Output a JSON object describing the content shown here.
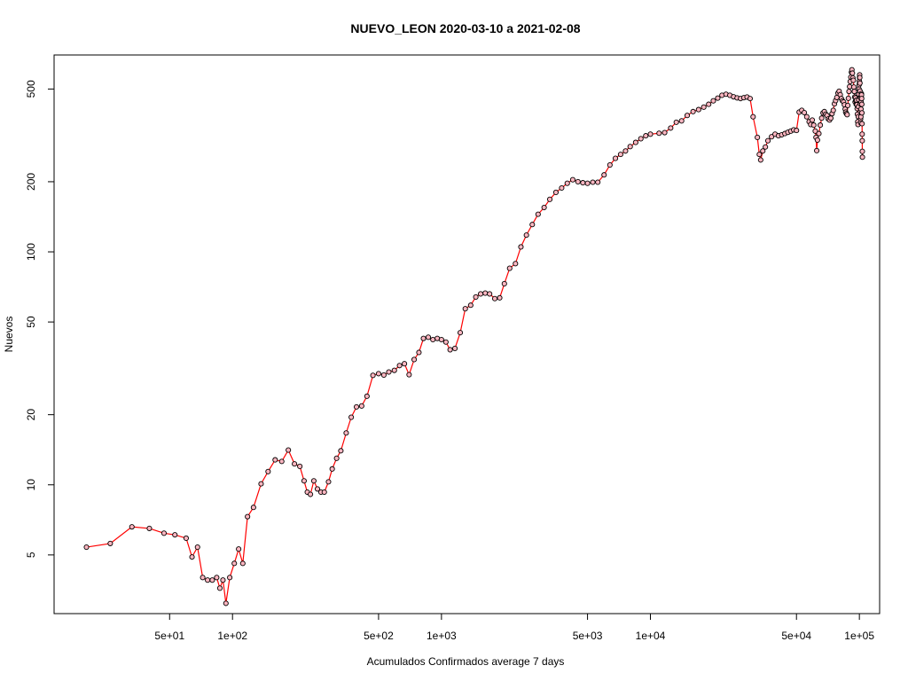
{
  "chart_data": {
    "type": "line",
    "title": "NUEVO_LEON 2020-03-10 a 2021-02-08",
    "xlabel": "Acumulados Confirmados average  7  days",
    "ylabel": "Nuevos",
    "x_scale": "log",
    "y_scale": "log",
    "xlim": [
      14,
      125000
    ],
    "ylim": [
      2.8,
      700
    ],
    "x_ticks": [
      {
        "value": 50,
        "label": "5e+01"
      },
      {
        "value": 100,
        "label": "1e+02"
      },
      {
        "value": 500,
        "label": "5e+02"
      },
      {
        "value": 1000,
        "label": "1e+03"
      },
      {
        "value": 5000,
        "label": "5e+03"
      },
      {
        "value": 10000,
        "label": "1e+04"
      },
      {
        "value": 50000,
        "label": "5e+04"
      },
      {
        "value": 100000,
        "label": "1e+05"
      }
    ],
    "y_ticks": [
      {
        "value": 5,
        "label": "5"
      },
      {
        "value": 10,
        "label": "10"
      },
      {
        "value": 20,
        "label": "20"
      },
      {
        "value": 50,
        "label": "50"
      },
      {
        "value": 100,
        "label": "100"
      },
      {
        "value": 200,
        "label": "200"
      },
      {
        "value": 500,
        "label": "500"
      }
    ],
    "grid": false,
    "legend": "none",
    "colors": {
      "line": "#ff0000",
      "marker_fill": "#ffb6c1",
      "marker_stroke": "#000000",
      "frame": "#000000"
    },
    "series": [
      {
        "points": [
          [
            20,
            5.4
          ],
          [
            26,
            5.6
          ],
          [
            33,
            6.6
          ],
          [
            40,
            6.5
          ],
          [
            47,
            6.2
          ],
          [
            53,
            6.1
          ],
          [
            60,
            5.9
          ],
          [
            64,
            4.9
          ],
          [
            68,
            5.4
          ],
          [
            72,
            4.0
          ],
          [
            76,
            3.9
          ],
          [
            80,
            3.9
          ],
          [
            84,
            4.0
          ],
          [
            87,
            3.6
          ],
          [
            90,
            3.9
          ],
          [
            93,
            3.1
          ],
          [
            97,
            4.0
          ],
          [
            102,
            4.6
          ],
          [
            107,
            5.3
          ],
          [
            112,
            4.6
          ],
          [
            118,
            7.3
          ],
          [
            126,
            8.0
          ],
          [
            137,
            10.1
          ],
          [
            148,
            11.4
          ],
          [
            160,
            12.8
          ],
          [
            172,
            12.6
          ],
          [
            185,
            14.1
          ],
          [
            198,
            12.3
          ],
          [
            210,
            12.0
          ],
          [
            220,
            10.4
          ],
          [
            228,
            9.3
          ],
          [
            236,
            9.1
          ],
          [
            245,
            10.4
          ],
          [
            255,
            9.6
          ],
          [
            265,
            9.3
          ],
          [
            275,
            9.3
          ],
          [
            288,
            10.3
          ],
          [
            300,
            11.7
          ],
          [
            315,
            13.0
          ],
          [
            330,
            14.0
          ],
          [
            350,
            16.7
          ],
          [
            370,
            19.5
          ],
          [
            392,
            21.6
          ],
          [
            415,
            21.8
          ],
          [
            440,
            24.0
          ],
          [
            470,
            29.5
          ],
          [
            500,
            30.0
          ],
          [
            530,
            29.6
          ],
          [
            560,
            30.5
          ],
          [
            595,
            31.0
          ],
          [
            630,
            32.5
          ],
          [
            665,
            33.1
          ],
          [
            700,
            29.7
          ],
          [
            740,
            34.5
          ],
          [
            780,
            37.0
          ],
          [
            820,
            42.5
          ],
          [
            865,
            43.0
          ],
          [
            910,
            42.0
          ],
          [
            955,
            42.5
          ],
          [
            1000,
            42.0
          ],
          [
            1050,
            41.0
          ],
          [
            1100,
            38.0
          ],
          [
            1160,
            38.5
          ],
          [
            1230,
            45.0
          ],
          [
            1300,
            57.0
          ],
          [
            1380,
            59.0
          ],
          [
            1460,
            64.0
          ],
          [
            1540,
            66.0
          ],
          [
            1620,
            66.5
          ],
          [
            1700,
            66.0
          ],
          [
            1800,
            63.0
          ],
          [
            1900,
            63.5
          ],
          [
            2000,
            73.0
          ],
          [
            2120,
            85.0
          ],
          [
            2260,
            89.0
          ],
          [
            2400,
            105
          ],
          [
            2550,
            118
          ],
          [
            2720,
            131
          ],
          [
            2900,
            145
          ],
          [
            3100,
            155
          ],
          [
            3300,
            168
          ],
          [
            3530,
            180
          ],
          [
            3760,
            188
          ],
          [
            4000,
            197
          ],
          [
            4250,
            204
          ],
          [
            4500,
            200
          ],
          [
            4750,
            198
          ],
          [
            5000,
            197
          ],
          [
            5300,
            199
          ],
          [
            5600,
            199
          ],
          [
            6000,
            214
          ],
          [
            6400,
            236
          ],
          [
            6800,
            252
          ],
          [
            7200,
            262
          ],
          [
            7600,
            271
          ],
          [
            8000,
            283
          ],
          [
            8500,
            295
          ],
          [
            9000,
            306
          ],
          [
            9500,
            315
          ],
          [
            10000,
            320
          ],
          [
            11000,
            323
          ],
          [
            11700,
            325
          ],
          [
            12500,
            340
          ],
          [
            13300,
            360
          ],
          [
            14100,
            365
          ],
          [
            15000,
            385
          ],
          [
            16000,
            400
          ],
          [
            17000,
            408
          ],
          [
            18000,
            418
          ],
          [
            19000,
            430
          ],
          [
            20000,
            445
          ],
          [
            21000,
            457
          ],
          [
            22000,
            470
          ],
          [
            23000,
            475
          ],
          [
            24000,
            470
          ],
          [
            25000,
            463
          ],
          [
            26000,
            458
          ],
          [
            27000,
            455
          ],
          [
            28000,
            459
          ],
          [
            29000,
            462
          ],
          [
            30000,
            455
          ],
          [
            31000,
            380
          ],
          [
            32500,
            310
          ],
          [
            33200,
            262
          ],
          [
            33700,
            248
          ],
          [
            34500,
            271
          ],
          [
            35500,
            282
          ],
          [
            36500,
            300
          ],
          [
            38000,
            312
          ],
          [
            39500,
            320
          ],
          [
            41000,
            315
          ],
          [
            42500,
            318
          ],
          [
            44000,
            322
          ],
          [
            45500,
            326
          ],
          [
            47000,
            330
          ],
          [
            48500,
            334
          ],
          [
            50000,
            332
          ],
          [
            51500,
            398
          ],
          [
            53000,
            405
          ],
          [
            54500,
            396
          ],
          [
            56000,
            380
          ],
          [
            57500,
            362
          ],
          [
            58500,
            352
          ],
          [
            59500,
            368
          ],
          [
            60500,
            350
          ],
          [
            61500,
            330
          ],
          [
            62000,
            310
          ],
          [
            62500,
            272
          ],
          [
            63000,
            302
          ],
          [
            64000,
            322
          ],
          [
            65000,
            350
          ],
          [
            66000,
            375
          ],
          [
            67000,
            395
          ],
          [
            68000,
            400
          ],
          [
            69000,
            390
          ],
          [
            70000,
            385
          ],
          [
            71000,
            372
          ],
          [
            72000,
            368
          ],
          [
            73000,
            375
          ],
          [
            74000,
            392
          ],
          [
            75000,
            405
          ],
          [
            76000,
            432
          ],
          [
            77000,
            446
          ],
          [
            78000,
            460
          ],
          [
            79000,
            480
          ],
          [
            80000,
            489
          ],
          [
            81000,
            473
          ],
          [
            82000,
            455
          ],
          [
            83000,
            445
          ],
          [
            84000,
            440
          ],
          [
            84800,
            428
          ],
          [
            85500,
            410
          ],
          [
            86000,
            398
          ],
          [
            86700,
            392
          ],
          [
            87400,
            388
          ],
          [
            88000,
            425
          ],
          [
            88600,
            456
          ],
          [
            89200,
            488
          ],
          [
            89800,
            512
          ],
          [
            90400,
            538
          ],
          [
            91000,
            562
          ],
          [
            91600,
            590
          ],
          [
            92100,
            605
          ],
          [
            92600,
            585
          ],
          [
            93100,
            558
          ],
          [
            93600,
            545
          ],
          [
            94100,
            510
          ],
          [
            94600,
            488
          ],
          [
            95000,
            462
          ],
          [
            95400,
            440
          ],
          [
            95800,
            458
          ],
          [
            96200,
            446
          ],
          [
            96600,
            430
          ],
          [
            97000,
            448
          ],
          [
            97300,
            428
          ],
          [
            97600,
            412
          ],
          [
            97900,
            390
          ],
          [
            98200,
            362
          ],
          [
            98500,
            352
          ],
          [
            98800,
            380
          ],
          [
            99000,
            420
          ],
          [
            99200,
            450
          ],
          [
            99400,
            475
          ],
          [
            99600,
            500
          ],
          [
            99800,
            522
          ],
          [
            100000,
            540
          ],
          [
            100150,
            560
          ],
          [
            100300,
            575
          ],
          [
            100450,
            560
          ],
          [
            100600,
            530
          ],
          [
            100750,
            490
          ],
          [
            100900,
            460
          ],
          [
            101050,
            432
          ],
          [
            101200,
            400
          ],
          [
            101350,
            372
          ],
          [
            101500,
            358
          ],
          [
            101650,
            380
          ],
          [
            101800,
            410
          ],
          [
            101950,
            440
          ],
          [
            102100,
            462
          ],
          [
            102250,
            478
          ],
          [
            102400,
            472
          ],
          [
            102550,
            455
          ],
          [
            102700,
            430
          ],
          [
            102850,
            395
          ],
          [
            103000,
            355
          ],
          [
            103100,
            320
          ],
          [
            103200,
            300
          ],
          [
            103300,
            270
          ],
          [
            103400,
            255
          ]
        ]
      }
    ]
  }
}
